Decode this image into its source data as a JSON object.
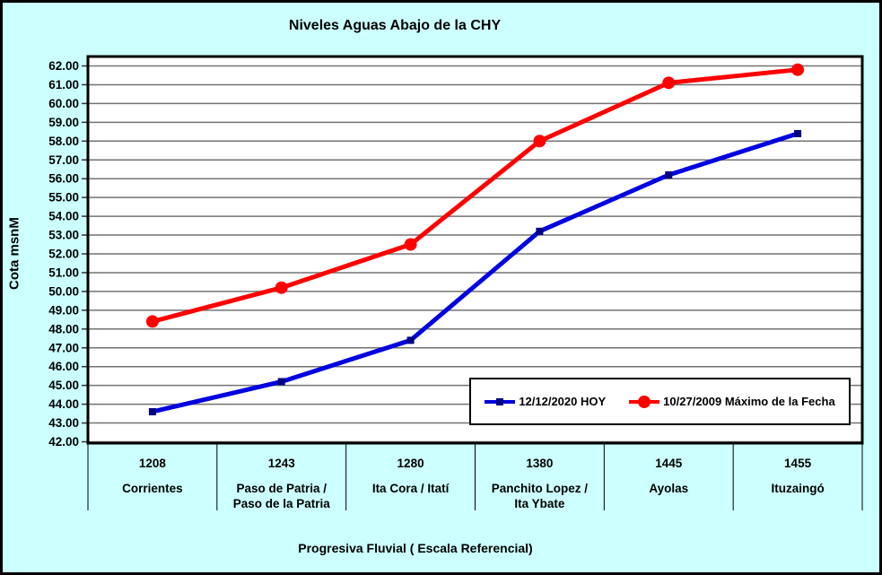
{
  "window": {
    "background_color": "#CCFFFF",
    "plot_background_color": "#FFFFFF",
    "gridline_color": "#737373",
    "border_color": "#000000"
  },
  "chart_data": {
    "type": "line",
    "title": "Niveles Aguas Abajo de la CHY",
    "ylabel": "Cota msnM",
    "xlabel": "Progresiva Fluvial ( Escala Referencial)",
    "ylim": [
      42,
      62
    ],
    "ytick_step": 1,
    "ytick_labels": [
      "42.00",
      "43.00",
      "44.00",
      "45.00",
      "46.00",
      "47.00",
      "48.00",
      "49.00",
      "50.00",
      "51.00",
      "52.00",
      "53.00",
      "54.00",
      "55.00",
      "56.00",
      "57.00",
      "58.00",
      "59.00",
      "60.00",
      "61.00",
      "62.00"
    ],
    "grid": "horizontal",
    "legend_position": "inside-bottom-right",
    "categories": [
      {
        "km": "1208",
        "name_lines": [
          "Corrientes"
        ]
      },
      {
        "km": "1243",
        "name_lines": [
          "Paso de Patria /",
          "Paso de la Patria"
        ]
      },
      {
        "km": "1280",
        "name_lines": [
          "Ita Cora / Itatí"
        ]
      },
      {
        "km": "1380",
        "name_lines": [
          "Panchito Lopez /",
          "Ita Ybate"
        ]
      },
      {
        "km": "1445",
        "name_lines": [
          "Ayolas"
        ]
      },
      {
        "km": "1455",
        "name_lines": [
          "Ituzaingó"
        ]
      }
    ],
    "series": [
      {
        "name": "12/12/2020 HOY",
        "color": "#0000E0",
        "marker": "square",
        "marker_color": "#000080",
        "values": [
          43.6,
          45.2,
          47.4,
          53.2,
          56.2,
          58.4
        ]
      },
      {
        "name": "10/27/2009 Máximo de la Fecha",
        "color": "#FF0000",
        "marker": "circle",
        "marker_color": "#FF0000",
        "values": [
          48.4,
          50.2,
          52.5,
          58.0,
          61.1,
          61.8
        ]
      }
    ]
  }
}
